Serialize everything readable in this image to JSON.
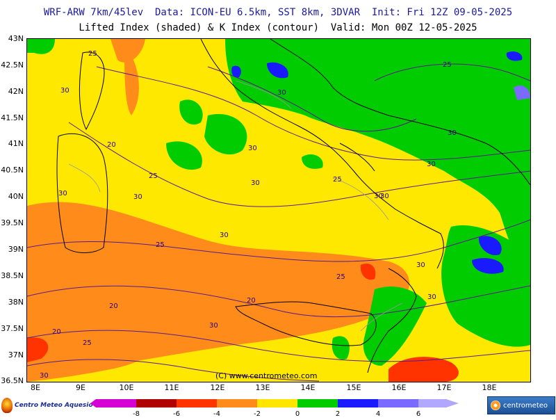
{
  "header": {
    "line1": "WRF-ARW 7km/45lev  Data: ICON-EU 6.5km, SST 8km, 3DVAR  Init: Fri 12Z 09-05-2025",
    "line2": "Lifted Index (shaded) & K Index (contour)  Valid: Mon 00Z 12-05-2025"
  },
  "map": {
    "lat_labels": [
      "43N",
      "42.5N",
      "42N",
      "41.5N",
      "41N",
      "40.5N",
      "40N",
      "39.5N",
      "39N",
      "38.5N",
      "38N",
      "37.5N",
      "37N",
      "36.5N"
    ],
    "lon_labels": [
      "8E",
      "9E",
      "10E",
      "11E",
      "12E",
      "13E",
      "14E",
      "15E",
      "16E",
      "17E",
      "18E"
    ],
    "credit": "(C) www.centrometeo.com",
    "contour_labels": [
      "25",
      "25",
      "30",
      "30",
      "20",
      "25",
      "30",
      "25",
      "30",
      "30",
      "30",
      "25",
      "30",
      "20",
      "20",
      "30",
      "25",
      "30",
      "20",
      "30",
      "30",
      "30",
      "25",
      "30",
      "30",
      "30"
    ],
    "colors": {
      "ocean_base": "#ffe800",
      "lifted_index_levels": [
        "#d400d4",
        "#b00000",
        "#ff3300",
        "#ff8c1a",
        "#ffe600",
        "#00cc00",
        "#1a1aff",
        "#7a6aff",
        "#b0a8ff"
      ],
      "contour_line": "#5a1a8a",
      "border_line": "#000000",
      "region_line": "#9a9a9a"
    }
  },
  "colorbar": {
    "ticks": [
      "-8",
      "-6",
      "-4",
      "-2",
      "0",
      "2",
      "4",
      "6"
    ]
  },
  "logos": {
    "left": "Centro Meteo Aquesio",
    "right": "centrometeo"
  }
}
